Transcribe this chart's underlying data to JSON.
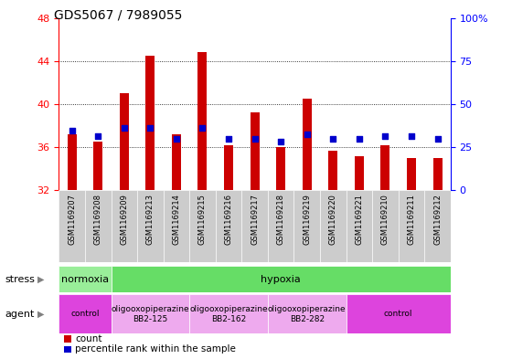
{
  "title": "GDS5067 / 7989055",
  "samples": [
    "GSM1169207",
    "GSM1169208",
    "GSM1169209",
    "GSM1169213",
    "GSM1169214",
    "GSM1169215",
    "GSM1169216",
    "GSM1169217",
    "GSM1169218",
    "GSM1169219",
    "GSM1169220",
    "GSM1169221",
    "GSM1169210",
    "GSM1169211",
    "GSM1169212"
  ],
  "bar_heights": [
    37.2,
    36.5,
    41.0,
    44.5,
    37.2,
    44.8,
    36.2,
    39.2,
    36.0,
    40.5,
    35.7,
    35.2,
    36.2,
    35.0,
    35.0
  ],
  "blue_vals": [
    37.5,
    37.0,
    37.8,
    37.8,
    36.8,
    37.8,
    36.8,
    36.8,
    36.5,
    37.2,
    36.8,
    36.8,
    37.0,
    37.0,
    36.8
  ],
  "ylim_left": [
    32,
    48
  ],
  "ylim_right": [
    0,
    100
  ],
  "yticks_left": [
    32,
    36,
    40,
    44,
    48
  ],
  "yticks_right": [
    0,
    25,
    50,
    75,
    100
  ],
  "ytick_labels_right": [
    "0",
    "25",
    "50",
    "75",
    "100%"
  ],
  "bar_color": "#cc0000",
  "blue_color": "#0000cc",
  "stress_groups": [
    {
      "text": "normoxia",
      "start": 0,
      "end": 2,
      "bg": "#99ee99"
    },
    {
      "text": "hypoxia",
      "start": 2,
      "end": 15,
      "bg": "#66dd66"
    }
  ],
  "agent_groups": [
    {
      "text": "control",
      "start": 0,
      "end": 2,
      "bg": "#dd44dd"
    },
    {
      "text": "oligooxopiperazine\nBB2-125",
      "start": 2,
      "end": 5,
      "bg": "#eeaaee"
    },
    {
      "text": "oligooxopiperazine\nBB2-162",
      "start": 5,
      "end": 8,
      "bg": "#eeaaee"
    },
    {
      "text": "oligooxopiperazine\nBB2-282",
      "start": 8,
      "end": 11,
      "bg": "#eeaaee"
    },
    {
      "text": "control",
      "start": 11,
      "end": 15,
      "bg": "#dd44dd"
    }
  ],
  "legend_items": [
    {
      "label": "count",
      "color": "#cc0000"
    },
    {
      "label": "percentile rank within the sample",
      "color": "#0000cc"
    }
  ]
}
